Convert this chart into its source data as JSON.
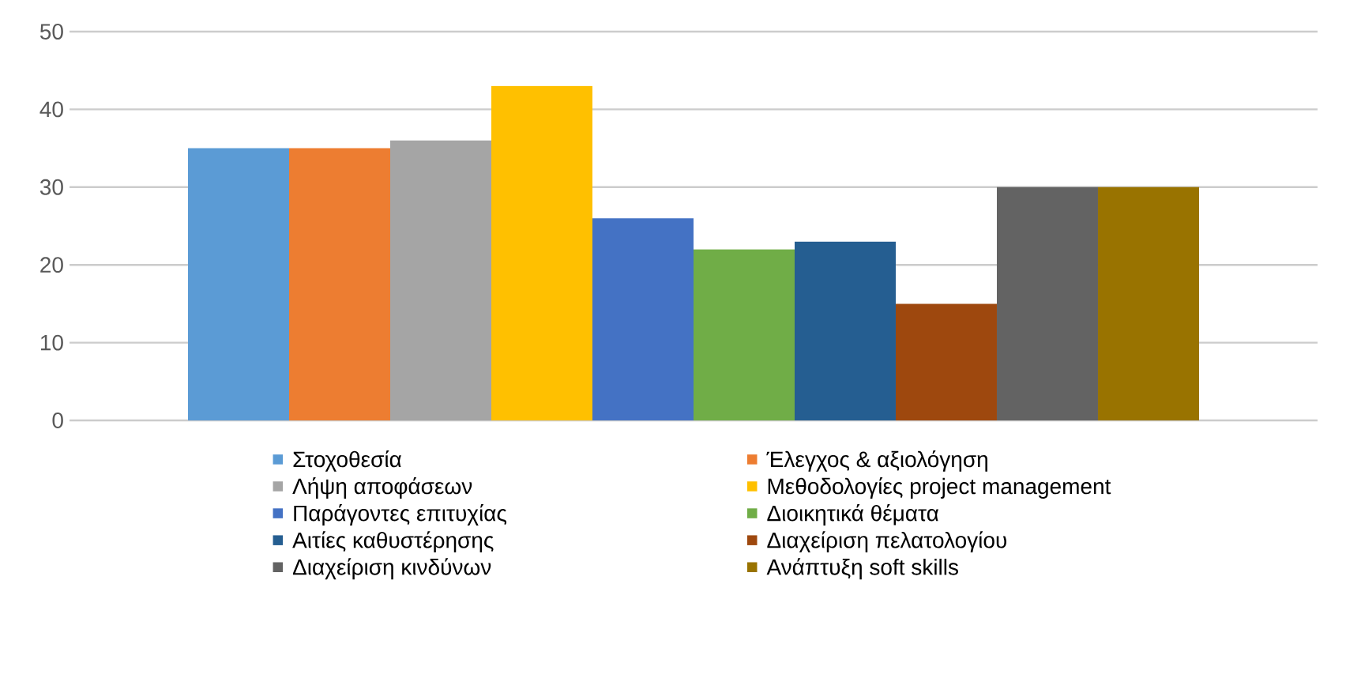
{
  "chart_data": {
    "type": "bar",
    "categories": [
      null
    ],
    "ylim": [
      0,
      50
    ],
    "yticks": [
      0,
      10,
      20,
      30,
      40,
      50
    ],
    "grid": "y",
    "legend": "bottom",
    "series": [
      {
        "name": "Στοχοθεσία",
        "color": "#5b9bd5",
        "values": [
          35
        ]
      },
      {
        "name": "Έλεγχος & αξιολόγηση",
        "color": "#ed7d31",
        "values": [
          35
        ]
      },
      {
        "name": "Λήψη αποφάσεων",
        "color": "#a5a5a5",
        "values": [
          36
        ]
      },
      {
        "name": "Μεθοδολογίες project management",
        "color": "#ffc000",
        "values": [
          43
        ]
      },
      {
        "name": "Παράγοντες επιτυχίας",
        "color": "#4472c4",
        "values": [
          26
        ]
      },
      {
        "name": "Διοικητικά θέματα",
        "color": "#70ad47",
        "values": [
          22
        ]
      },
      {
        "name": "Αιτίες καθυστέρησης",
        "color": "#255e91",
        "values": [
          23
        ]
      },
      {
        "name": "Διαχείριση πελατολογίου",
        "color": "#9e480e",
        "values": [
          15
        ]
      },
      {
        "name": "Διαχείριση κινδύνων",
        "color": "#636363",
        "values": [
          30
        ]
      },
      {
        "name": "Ανάπτυξη soft skills",
        "color": "#997300",
        "values": [
          30
        ]
      }
    ]
  }
}
